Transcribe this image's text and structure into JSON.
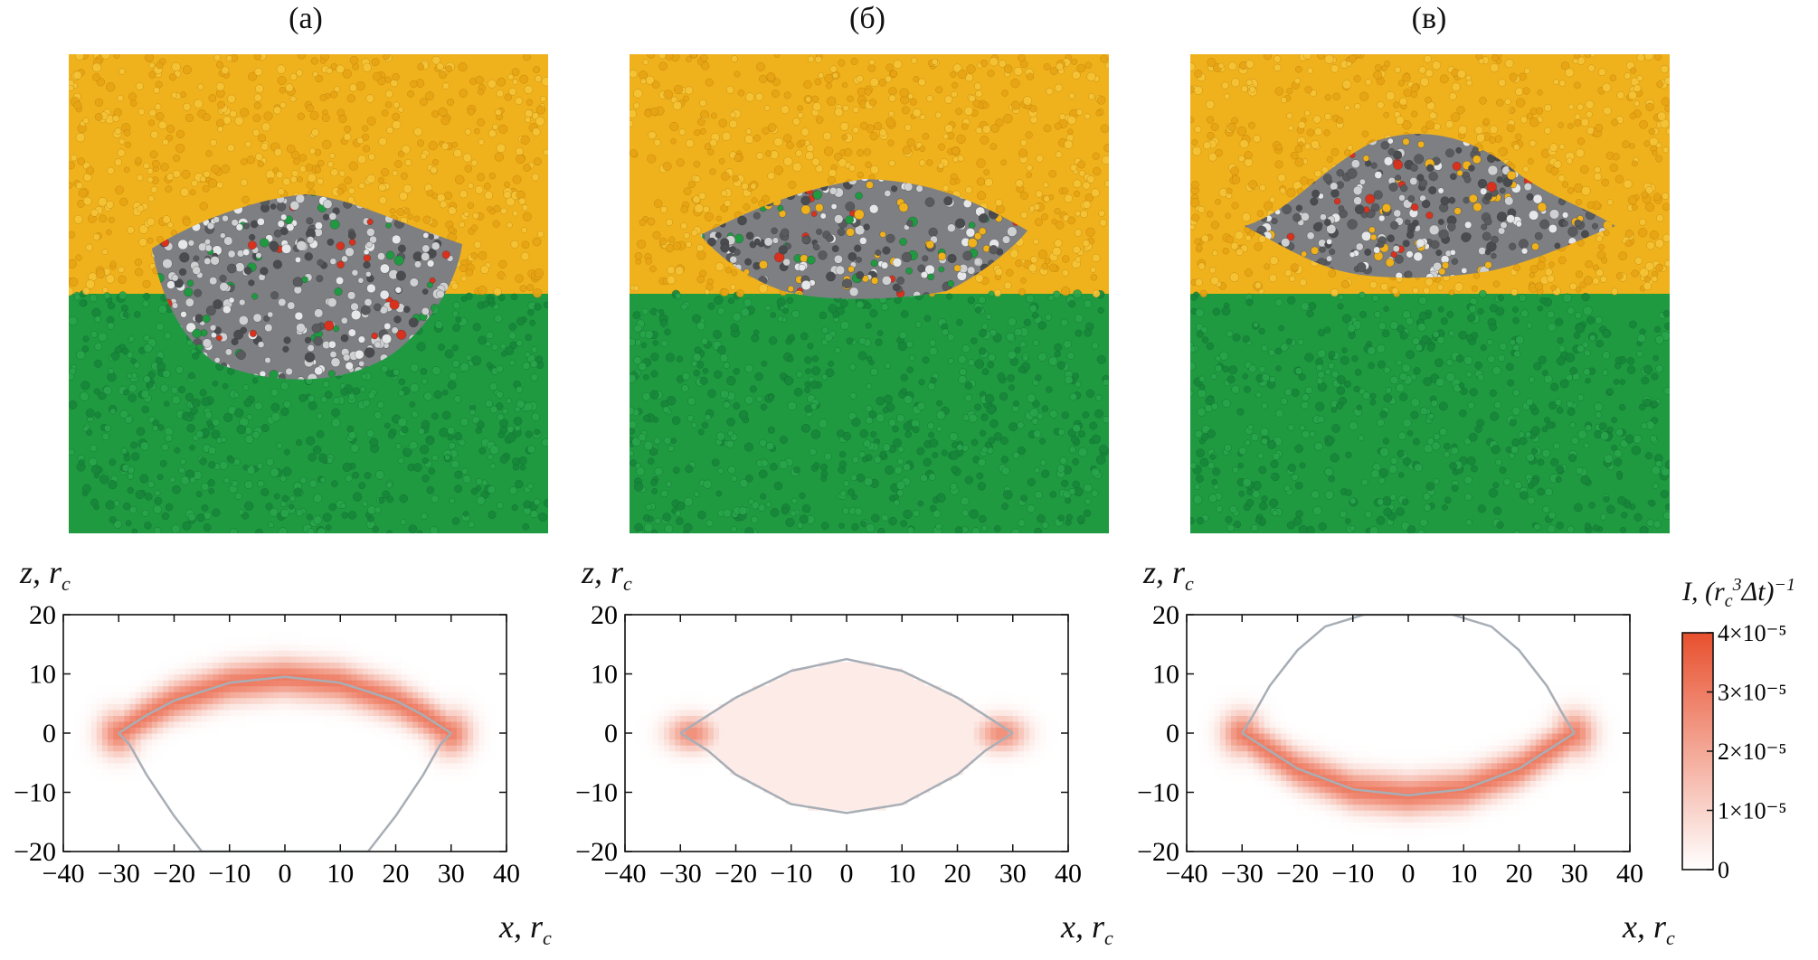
{
  "figure": {
    "panels": [
      {
        "label": "(а)",
        "ylabel": "z, r",
        "ylabel_sub": "c",
        "xlabel": "x, r",
        "xlabel_sub": "c"
      },
      {
        "label": "(б)",
        "ylabel": "z, r",
        "ylabel_sub": "c",
        "xlabel": "x, r",
        "xlabel_sub": "c"
      },
      {
        "label": "(в)",
        "ylabel": "z, r",
        "ylabel_sub": "c",
        "xlabel": "x, r",
        "xlabel_sub": "c"
      }
    ],
    "colorbar": {
      "title": "I, (r_c^3 Δt)^−1",
      "ticks": [
        {
          "value": 4e-05,
          "label": "4×10⁻⁵"
        },
        {
          "value": 3e-05,
          "label": "3×10⁻⁵"
        },
        {
          "value": 2e-05,
          "label": "2×10⁻⁵"
        },
        {
          "value": 1e-05,
          "label": "1×10⁻⁵"
        },
        {
          "value": 0,
          "label": "0"
        }
      ],
      "range": [
        0,
        4e-05
      ],
      "color_low": "#ffffff",
      "color_high": "#e8502e"
    },
    "colors": {
      "upper_phase": "#f0b21c",
      "lower_phase": "#1f9a41",
      "particle_gray": "#595a5e",
      "particle_light": "#cfd0d2",
      "particle_red": "#d8321e",
      "contour": "#a8aeb6"
    }
  },
  "chart_data": [
    {
      "type": "heatmap",
      "panel": "(а)",
      "xlabel": "x, r_c",
      "ylabel": "z, r_c",
      "xlim": [
        -40,
        40
      ],
      "ylim": [
        -20,
        20
      ],
      "xticks": [
        -40,
        -30,
        -20,
        -10,
        0,
        10,
        20,
        30,
        40
      ],
      "yticks": [
        -20,
        -10,
        0,
        10,
        20
      ],
      "contour": {
        "upper_arc": [
          [
            -30,
            0
          ],
          [
            -25,
            3
          ],
          [
            -20,
            5.5
          ],
          [
            -10,
            8.5
          ],
          [
            0,
            9.5
          ],
          [
            10,
            8.5
          ],
          [
            20,
            5.5
          ],
          [
            25,
            3
          ],
          [
            30,
            0
          ]
        ],
        "lower_arc": [
          [
            -30,
            0
          ],
          [
            -28,
            -2
          ],
          [
            -25,
            -7
          ],
          [
            -20,
            -14
          ],
          [
            -15,
            -20
          ],
          [
            15,
            -20
          ],
          [
            20,
            -14
          ],
          [
            25,
            -7
          ],
          [
            28,
            -2
          ],
          [
            30,
            0
          ]
        ]
      },
      "intensity_band": {
        "along": "upper_arc",
        "peak": 3e-05,
        "width": 2.2
      }
    },
    {
      "type": "heatmap",
      "panel": "(б)",
      "xlabel": "x, r_c",
      "ylabel": "z, r_c",
      "xlim": [
        -40,
        40
      ],
      "ylim": [
        -20,
        20
      ],
      "xticks": [
        -40,
        -30,
        -20,
        -10,
        0,
        10,
        20,
        30,
        40
      ],
      "yticks": [
        -20,
        -10,
        0,
        10,
        20
      ],
      "contour": {
        "upper_arc": [
          [
            -30,
            0
          ],
          [
            -25,
            3
          ],
          [
            -20,
            6
          ],
          [
            -10,
            10.5
          ],
          [
            0,
            12.5
          ],
          [
            10,
            10.5
          ],
          [
            20,
            6
          ],
          [
            25,
            3
          ],
          [
            30,
            0
          ]
        ],
        "lower_arc": [
          [
            -30,
            0
          ],
          [
            -25,
            -3
          ],
          [
            -20,
            -7
          ],
          [
            -10,
            -12
          ],
          [
            0,
            -13.5
          ],
          [
            10,
            -12
          ],
          [
            20,
            -7
          ],
          [
            25,
            -3
          ],
          [
            30,
            0
          ]
        ]
      },
      "intensity_band": {
        "along": "diffuse_with_edge_peaks",
        "peak": 2.6e-05,
        "width": 3.0
      }
    },
    {
      "type": "heatmap",
      "panel": "(в)",
      "xlabel": "x, r_c",
      "ylabel": "z, r_c",
      "xlim": [
        -40,
        40
      ],
      "ylim": [
        -20,
        20
      ],
      "xticks": [
        -40,
        -30,
        -20,
        -10,
        0,
        10,
        20,
        30,
        40
      ],
      "yticks": [
        -20,
        -10,
        0,
        10,
        20
      ],
      "contour": {
        "upper_arc": [
          [
            -30,
            0
          ],
          [
            -28,
            3
          ],
          [
            -25,
            8
          ],
          [
            -20,
            14
          ],
          [
            -15,
            18
          ],
          [
            -8,
            20
          ],
          [
            8,
            20
          ],
          [
            15,
            18
          ],
          [
            20,
            14
          ],
          [
            25,
            8
          ],
          [
            28,
            3
          ],
          [
            30,
            0
          ]
        ],
        "lower_arc": [
          [
            -30,
            0
          ],
          [
            -25,
            -3
          ],
          [
            -20,
            -6
          ],
          [
            -10,
            -9.5
          ],
          [
            0,
            -10.5
          ],
          [
            10,
            -9.5
          ],
          [
            20,
            -6
          ],
          [
            25,
            -3
          ],
          [
            30,
            0
          ]
        ]
      },
      "intensity_band": {
        "along": "lower_arc",
        "peak": 3e-05,
        "width": 2.2
      }
    }
  ]
}
